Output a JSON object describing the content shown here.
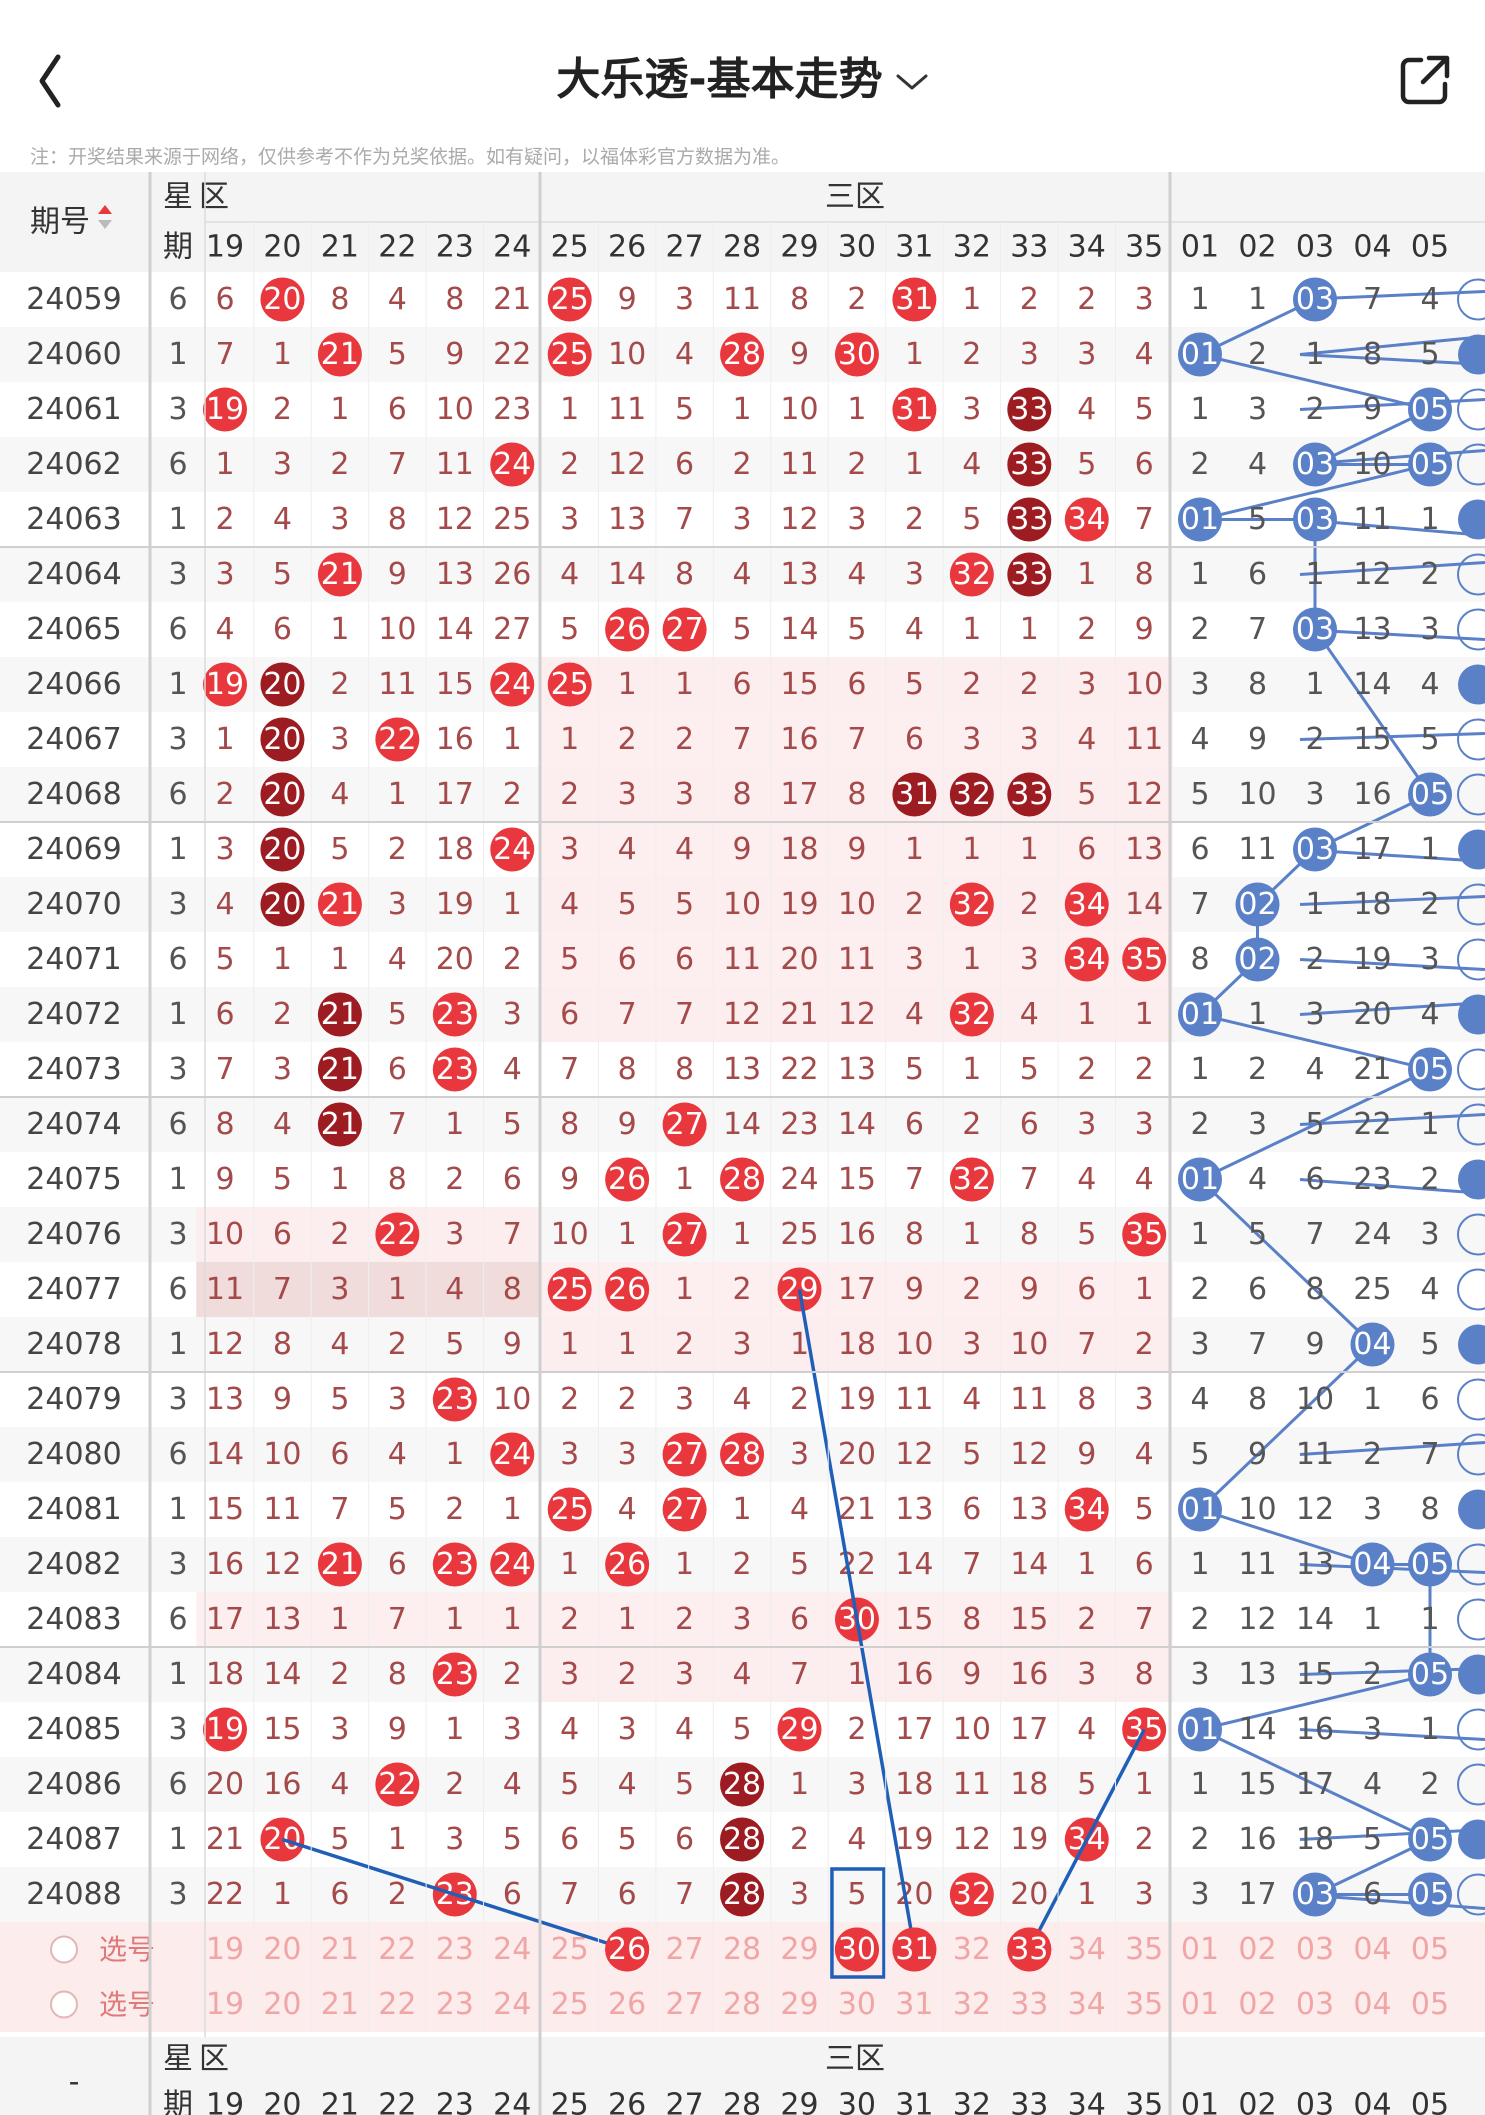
{
  "header": {
    "title": "大乐透-基本走势"
  },
  "note": "注：开奖结果来源于网络，仅供参考不作为兑奖依据。如有疑问，以福体彩官方数据为准。",
  "table": {
    "col_period": "期号",
    "col_star": "星期",
    "zone_star_label": "区",
    "zone_front_label": "三区",
    "front_cols": [
      "19",
      "20",
      "21",
      "22",
      "23",
      "24",
      "25",
      "26",
      "27",
      "28",
      "29",
      "30",
      "31",
      "32",
      "33",
      "34",
      "35"
    ],
    "back_cols": [
      "01",
      "02",
      "03",
      "04",
      "05"
    ],
    "select_label": "选号",
    "footer_period": "-",
    "rows": [
      {
        "id": "24059",
        "wk": "6",
        "f": [
          "6",
          "20",
          "8",
          "4",
          "8",
          "21",
          "25",
          "9",
          "3",
          "11",
          "8",
          "2",
          "31",
          "1",
          "2",
          "2",
          "3"
        ],
        "b": [
          "1",
          "1",
          "03",
          "7",
          "4"
        ]
      },
      {
        "id": "24060",
        "wk": "1",
        "f": [
          "7",
          "1",
          "21",
          "5",
          "9",
          "22",
          "25",
          "10",
          "4",
          "28",
          "9",
          "30",
          "1",
          "2",
          "3",
          "3",
          "4"
        ],
        "b": [
          "01",
          "2",
          "1",
          "8",
          "5"
        ]
      },
      {
        "id": "24061",
        "wk": "3",
        "f": [
          "19",
          "2",
          "1",
          "6",
          "10",
          "23",
          "1",
          "11",
          "5",
          "1",
          "10",
          "1",
          "31",
          "3",
          "33",
          "4",
          "5"
        ],
        "b": [
          "1",
          "3",
          "2",
          "9",
          "05"
        ]
      },
      {
        "id": "24062",
        "wk": "6",
        "f": [
          "1",
          "3",
          "2",
          "7",
          "11",
          "24",
          "2",
          "12",
          "6",
          "2",
          "11",
          "2",
          "1",
          "4",
          "33",
          "5",
          "6"
        ],
        "b": [
          "2",
          "4",
          "03",
          "10",
          "05"
        ]
      },
      {
        "id": "24063",
        "wk": "1",
        "f": [
          "2",
          "4",
          "3",
          "8",
          "12",
          "25",
          "3",
          "13",
          "7",
          "3",
          "12",
          "3",
          "2",
          "5",
          "33",
          "34",
          "7"
        ],
        "b": [
          "01",
          "5",
          "03",
          "11",
          "1"
        ]
      },
      {
        "id": "24064",
        "wk": "3",
        "f": [
          "3",
          "5",
          "21",
          "9",
          "13",
          "26",
          "4",
          "14",
          "8",
          "4",
          "13",
          "4",
          "3",
          "32",
          "33",
          "1",
          "8"
        ],
        "b": [
          "1",
          "6",
          "1",
          "12",
          "2"
        ]
      },
      {
        "id": "24065",
        "wk": "6",
        "f": [
          "4",
          "6",
          "1",
          "10",
          "14",
          "27",
          "5",
          "26",
          "27",
          "5",
          "14",
          "5",
          "4",
          "1",
          "1",
          "2",
          "9"
        ],
        "b": [
          "2",
          "7",
          "03",
          "13",
          "3"
        ]
      },
      {
        "id": "24066",
        "wk": "1",
        "f": [
          "19",
          "20",
          "2",
          "11",
          "15",
          "24",
          "25",
          "1",
          "1",
          "6",
          "15",
          "6",
          "5",
          "2",
          "2",
          "3",
          "10"
        ],
        "b": [
          "3",
          "8",
          "1",
          "14",
          "4"
        ]
      },
      {
        "id": "24067",
        "wk": "3",
        "f": [
          "1",
          "20",
          "3",
          "22",
          "16",
          "1",
          "1",
          "2",
          "2",
          "7",
          "16",
          "7",
          "6",
          "3",
          "3",
          "4",
          "11"
        ],
        "b": [
          "4",
          "9",
          "2",
          "15",
          "5"
        ]
      },
      {
        "id": "24068",
        "wk": "6",
        "f": [
          "2",
          "20",
          "4",
          "1",
          "17",
          "2",
          "2",
          "3",
          "3",
          "8",
          "17",
          "8",
          "31",
          "32",
          "33",
          "5",
          "12"
        ],
        "b": [
          "5",
          "10",
          "3",
          "16",
          "05"
        ]
      },
      {
        "id": "24069",
        "wk": "1",
        "f": [
          "3",
          "20",
          "5",
          "2",
          "18",
          "24",
          "3",
          "4",
          "4",
          "9",
          "18",
          "9",
          "1",
          "1",
          "1",
          "6",
          "13"
        ],
        "b": [
          "6",
          "11",
          "03",
          "17",
          "1"
        ]
      },
      {
        "id": "24070",
        "wk": "3",
        "f": [
          "4",
          "20",
          "21",
          "3",
          "19",
          "1",
          "4",
          "5",
          "5",
          "10",
          "19",
          "10",
          "2",
          "32",
          "2",
          "34",
          "14"
        ],
        "b": [
          "7",
          "02",
          "1",
          "18",
          "2"
        ]
      },
      {
        "id": "24071",
        "wk": "6",
        "f": [
          "5",
          "1",
          "1",
          "4",
          "20",
          "2",
          "5",
          "6",
          "6",
          "11",
          "20",
          "11",
          "3",
          "1",
          "3",
          "34",
          "35"
        ],
        "b": [
          "8",
          "02",
          "2",
          "19",
          "3"
        ]
      },
      {
        "id": "24072",
        "wk": "1",
        "f": [
          "6",
          "2",
          "21",
          "5",
          "23",
          "3",
          "6",
          "7",
          "7",
          "12",
          "21",
          "12",
          "4",
          "32",
          "4",
          "1",
          "1"
        ],
        "b": [
          "01",
          "1",
          "3",
          "20",
          "4"
        ]
      },
      {
        "id": "24073",
        "wk": "3",
        "f": [
          "7",
          "3",
          "21",
          "6",
          "23",
          "4",
          "7",
          "8",
          "8",
          "13",
          "22",
          "13",
          "5",
          "1",
          "5",
          "2",
          "2"
        ],
        "b": [
          "1",
          "2",
          "4",
          "21",
          "05"
        ]
      },
      {
        "id": "24074",
        "wk": "6",
        "f": [
          "8",
          "4",
          "21",
          "7",
          "1",
          "5",
          "8",
          "9",
          "27",
          "14",
          "23",
          "14",
          "6",
          "2",
          "6",
          "3",
          "3"
        ],
        "b": [
          "2",
          "3",
          "5",
          "22",
          "1"
        ]
      },
      {
        "id": "24075",
        "wk": "1",
        "f": [
          "9",
          "5",
          "1",
          "8",
          "2",
          "6",
          "9",
          "26",
          "1",
          "28",
          "24",
          "15",
          "7",
          "32",
          "7",
          "4",
          "4"
        ],
        "b": [
          "01",
          "4",
          "6",
          "23",
          "2"
        ]
      },
      {
        "id": "24076",
        "wk": "3",
        "f": [
          "10",
          "6",
          "2",
          "22",
          "3",
          "7",
          "10",
          "1",
          "27",
          "1",
          "25",
          "16",
          "8",
          "1",
          "8",
          "5",
          "35"
        ],
        "b": [
          "1",
          "5",
          "7",
          "24",
          "3"
        ]
      },
      {
        "id": "24077",
        "wk": "6",
        "f": [
          "11",
          "7",
          "3",
          "1",
          "4",
          "8",
          "25",
          "26",
          "1",
          "2",
          "29",
          "17",
          "9",
          "2",
          "9",
          "6",
          "1"
        ],
        "b": [
          "2",
          "6",
          "8",
          "25",
          "4"
        ]
      },
      {
        "id": "24078",
        "wk": "1",
        "f": [
          "12",
          "8",
          "4",
          "2",
          "5",
          "9",
          "1",
          "1",
          "2",
          "3",
          "1",
          "18",
          "10",
          "3",
          "10",
          "7",
          "2"
        ],
        "b": [
          "3",
          "7",
          "9",
          "04",
          "5"
        ]
      },
      {
        "id": "24079",
        "wk": "3",
        "f": [
          "13",
          "9",
          "5",
          "3",
          "23",
          "10",
          "2",
          "2",
          "3",
          "4",
          "2",
          "19",
          "11",
          "4",
          "11",
          "8",
          "3"
        ],
        "b": [
          "4",
          "8",
          "10",
          "1",
          "6"
        ]
      },
      {
        "id": "24080",
        "wk": "6",
        "f": [
          "14",
          "10",
          "6",
          "4",
          "1",
          "24",
          "3",
          "3",
          "27",
          "28",
          "3",
          "20",
          "12",
          "5",
          "12",
          "9",
          "4"
        ],
        "b": [
          "5",
          "9",
          "11",
          "2",
          "7"
        ]
      },
      {
        "id": "24081",
        "wk": "1",
        "f": [
          "15",
          "11",
          "7",
          "5",
          "2",
          "1",
          "25",
          "4",
          "27",
          "1",
          "4",
          "21",
          "13",
          "6",
          "13",
          "34",
          "5"
        ],
        "b": [
          "01",
          "10",
          "12",
          "3",
          "8"
        ]
      },
      {
        "id": "24082",
        "wk": "3",
        "f": [
          "16",
          "12",
          "21",
          "6",
          "23",
          "24",
          "1",
          "26",
          "1",
          "2",
          "5",
          "22",
          "14",
          "7",
          "14",
          "1",
          "6"
        ],
        "b": [
          "1",
          "11",
          "13",
          "04",
          "05"
        ]
      },
      {
        "id": "24083",
        "wk": "6",
        "f": [
          "17",
          "13",
          "1",
          "7",
          "1",
          "1",
          "2",
          "1",
          "2",
          "3",
          "6",
          "30",
          "15",
          "8",
          "15",
          "2",
          "7"
        ],
        "b": [
          "2",
          "12",
          "14",
          "1",
          "1"
        ]
      },
      {
        "id": "24084",
        "wk": "1",
        "f": [
          "18",
          "14",
          "2",
          "8",
          "23",
          "2",
          "3",
          "2",
          "3",
          "4",
          "7",
          "1",
          "16",
          "9",
          "16",
          "3",
          "8"
        ],
        "b": [
          "3",
          "13",
          "15",
          "2",
          "05"
        ]
      },
      {
        "id": "24085",
        "wk": "3",
        "f": [
          "19",
          "15",
          "3",
          "9",
          "1",
          "3",
          "4",
          "3",
          "4",
          "5",
          "29",
          "2",
          "17",
          "10",
          "17",
          "4",
          "35"
        ],
        "b": [
          "01",
          "14",
          "16",
          "3",
          "1"
        ]
      },
      {
        "id": "24086",
        "wk": "6",
        "f": [
          "20",
          "16",
          "4",
          "22",
          "2",
          "4",
          "5",
          "4",
          "5",
          "28",
          "1",
          "3",
          "18",
          "11",
          "18",
          "5",
          "1"
        ],
        "b": [
          "1",
          "15",
          "17",
          "4",
          "2"
        ]
      },
      {
        "id": "24087",
        "wk": "1",
        "f": [
          "21",
          "20",
          "5",
          "1",
          "3",
          "5",
          "6",
          "5",
          "6",
          "28",
          "2",
          "4",
          "19",
          "12",
          "19",
          "34",
          "2"
        ],
        "b": [
          "2",
          "16",
          "18",
          "5",
          "05"
        ]
      },
      {
        "id": "24088",
        "wk": "3",
        "f": [
          "22",
          "1",
          "6",
          "2",
          "23",
          "6",
          "7",
          "6",
          "7",
          "28",
          "3",
          "5",
          "20",
          "32",
          "20",
          "1",
          "3"
        ],
        "b": [
          "3",
          "17",
          "03",
          "6",
          "05"
        ]
      }
    ],
    "dark_cells": [
      "24061-33",
      "24062-33",
      "24063-33",
      "24064-33",
      "24066-20",
      "24067-20",
      "24068-20",
      "24068-31",
      "24068-32",
      "24068-33",
      "24069-20",
      "24070-20",
      "24072-21",
      "24073-21",
      "24074-21",
      "24086-28",
      "24087-28",
      "24088-28"
    ],
    "user_selected": [
      "26",
      "30",
      "31",
      "33"
    ]
  }
}
